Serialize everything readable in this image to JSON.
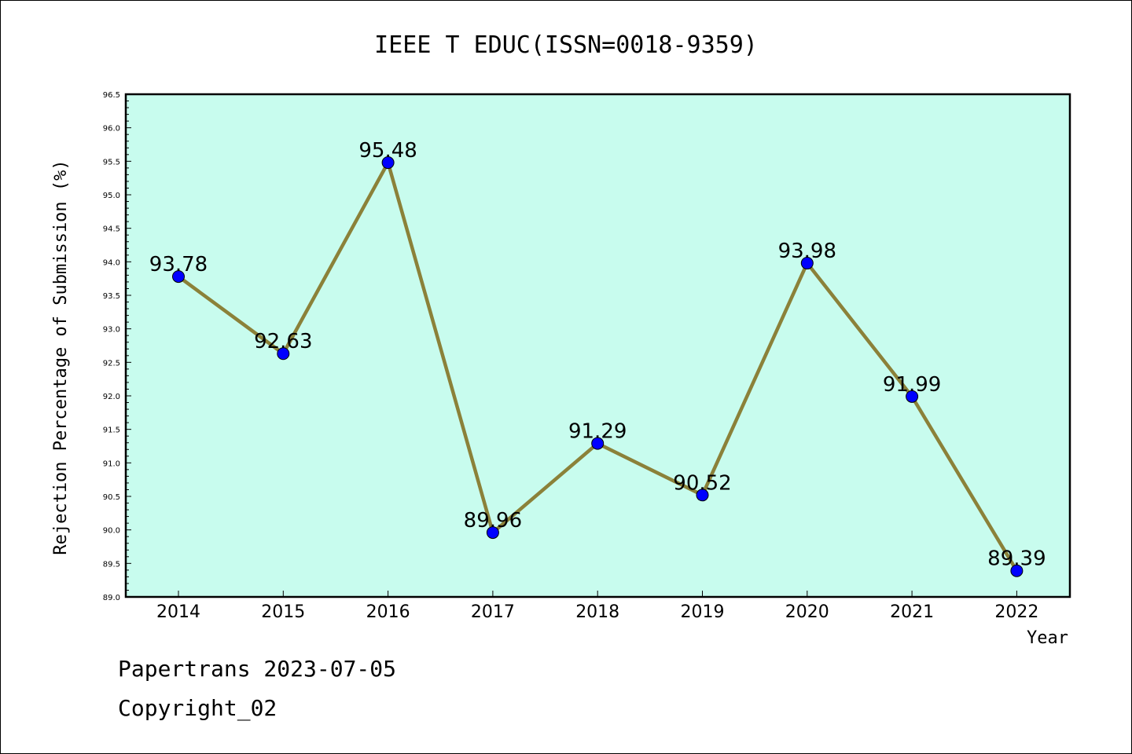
{
  "chart_data": {
    "type": "line",
    "title": "IEEE T EDUC(ISSN=0018-9359)",
    "xlabel": "Year",
    "ylabel": "Rejection Percentage of Submission (%)",
    "categories": [
      "2014",
      "2015",
      "2016",
      "2017",
      "2018",
      "2019",
      "2020",
      "2021",
      "2022"
    ],
    "series": [
      {
        "values": [
          93.78,
          92.63,
          95.48,
          89.96,
          91.29,
          90.52,
          93.98,
          91.99,
          89.39
        ]
      }
    ],
    "data_labels": [
      "93.78",
      "92.63",
      "95.48",
      "89.96",
      "91.29",
      "90.52",
      "93.98",
      "91.99",
      "89.39"
    ],
    "ylim": [
      89.0,
      96.5
    ],
    "yticks": [
      "89.0",
      "89.5",
      "90.0",
      "90.5",
      "91.0",
      "91.5",
      "92.0",
      "92.5",
      "93.0",
      "93.5",
      "94.0",
      "94.5",
      "95.0",
      "95.5",
      "96.0",
      "96.5"
    ],
    "grid": false,
    "colors": {
      "plot_background": "#c8fcee",
      "line": "#8b8139",
      "marker": "#0000ff"
    }
  },
  "footer": {
    "line1": "Papertrans 2023-07-05",
    "line2": "Copyright_02"
  }
}
